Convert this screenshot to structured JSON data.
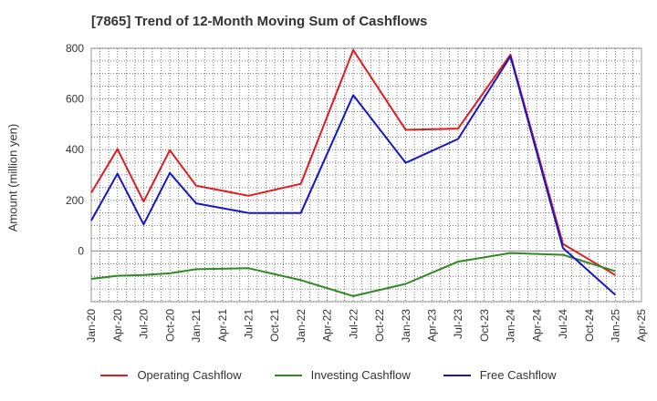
{
  "chart_data": {
    "type": "line",
    "title": "[7865]  Trend of 12-Month Moving Sum of Cashflows",
    "ylabel": "Amount (million yen)",
    "xlabel": "",
    "categories": [
      "Jan-20",
      "Apr-20",
      "Jul-20",
      "Oct-20",
      "Jan-21",
      "Apr-21",
      "Jul-21",
      "Oct-21",
      "Jan-22",
      "Apr-22",
      "Jul-22",
      "Oct-22",
      "Jan-23",
      "Apr-23",
      "Jul-23",
      "Oct-23",
      "Jan-24",
      "Apr-24",
      "Jul-24",
      "Oct-24",
      "Jan-25",
      "Apr-25"
    ],
    "ylim": [
      -200,
      800
    ],
    "yticks": [
      0,
      200,
      400,
      600,
      800
    ],
    "grid": true,
    "legend_position": "bottom",
    "series": [
      {
        "name": "Operating Cashflow",
        "color": "#e41a1c",
        "values": [
          230,
          402,
          195,
          398,
          258,
          null,
          218,
          null,
          265,
          null,
          793,
          null,
          478,
          null,
          483,
          null,
          775,
          null,
          28,
          null,
          -95,
          null
        ]
      },
      {
        "name": "Investing Cashflow",
        "color": "#2e8b22",
        "values": [
          -110,
          -98,
          -95,
          -88,
          -72,
          null,
          -68,
          null,
          -115,
          null,
          -178,
          null,
          -130,
          null,
          -42,
          null,
          -8,
          null,
          -15,
          null,
          -80,
          null
        ]
      },
      {
        "name": "Free Cashflow",
        "color": "#1515cc",
        "values": [
          120,
          305,
          105,
          308,
          188,
          null,
          150,
          null,
          150,
          null,
          615,
          null,
          348,
          null,
          442,
          null,
          768,
          null,
          12,
          null,
          -173,
          null
        ]
      }
    ]
  }
}
